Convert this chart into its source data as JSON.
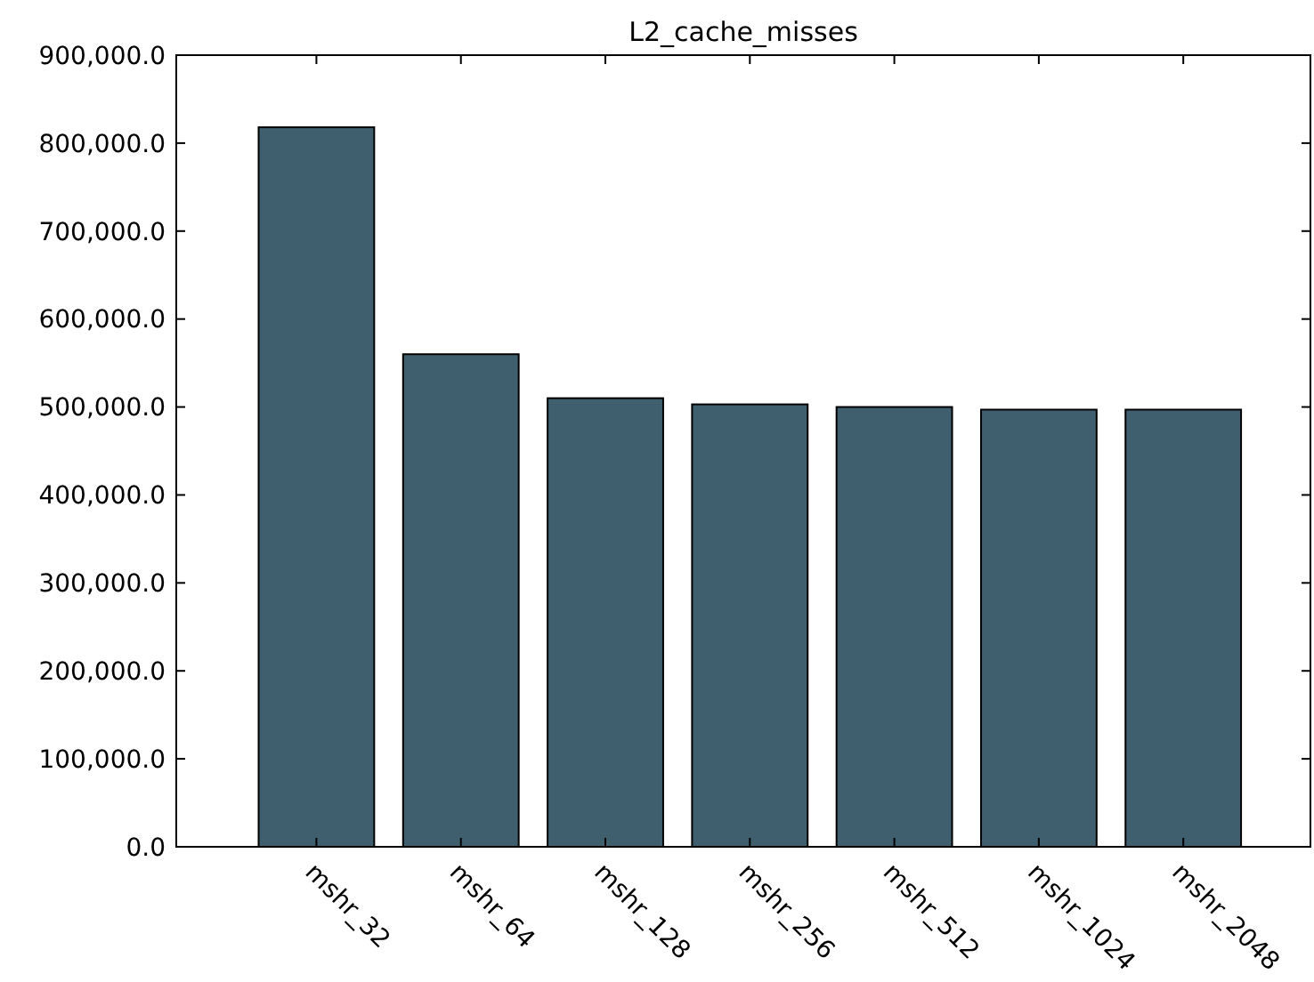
{
  "chart_data": {
    "type": "bar",
    "title": "L2_cache_misses",
    "categories": [
      "mshr_32",
      "mshr_64",
      "mshr_128",
      "mshr_256",
      "mshr_512",
      "mshr_1024",
      "mshr_2048"
    ],
    "values": [
      818000,
      560000,
      510000,
      503000,
      500000,
      497000,
      497000
    ],
    "color": "#3f5f6e",
    "ylim": [
      0,
      900000
    ],
    "yticks": [
      {
        "value": 0,
        "label": "0.0"
      },
      {
        "value": 100000,
        "label": "100,000.0"
      },
      {
        "value": 200000,
        "label": "200,000.0"
      },
      {
        "value": 300000,
        "label": "300,000.0"
      },
      {
        "value": 400000,
        "label": "400,000.0"
      },
      {
        "value": 500000,
        "label": "500,000.0"
      },
      {
        "value": 600000,
        "label": "600,000.0"
      },
      {
        "value": 700000,
        "label": "700,000.0"
      },
      {
        "value": 800000,
        "label": "800,000.0"
      },
      {
        "value": 900000,
        "label": "900,000.0"
      }
    ],
    "grid": false
  }
}
